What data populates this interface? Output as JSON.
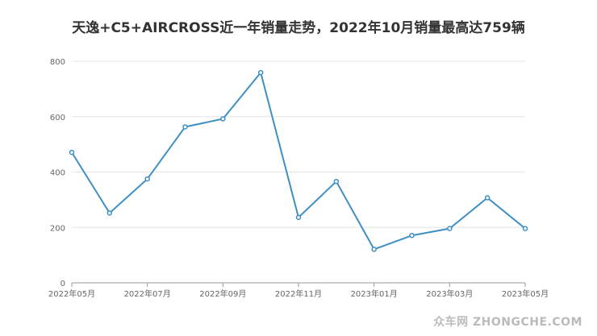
{
  "chart_data": {
    "type": "line",
    "title": "天逸+C5+AIRCROSS近一年销量走势，2022年10月销量最高达759辆",
    "x": [
      "2022年05月",
      "2022年06月",
      "2022年07月",
      "2022年08月",
      "2022年09月",
      "2022年10月",
      "2022年11月",
      "2022年12月",
      "2023年01月",
      "2023年02月",
      "2023年03月",
      "2023年04月",
      "2023年05月"
    ],
    "xtick_labels": [
      "2022年05月",
      "",
      "2022年07月",
      "",
      "2022年09月",
      "",
      "2022年11月",
      "",
      "2023年01月",
      "",
      "2023年03月",
      "",
      "2023年05月"
    ],
    "series": [
      {
        "values": [
          471,
          252,
          375,
          563,
          592,
          759,
          236,
          366,
          121,
          171,
          196,
          307,
          196
        ]
      }
    ],
    "ylim": [
      0,
      800
    ],
    "yticks": [
      0,
      200,
      400,
      600,
      800
    ],
    "grid": true,
    "line_color": "#3d8fc4",
    "grid_color": "#e6e6e6",
    "axis_color": "#999999"
  },
  "watermark": "众车网 ZHONGCHE.COM"
}
